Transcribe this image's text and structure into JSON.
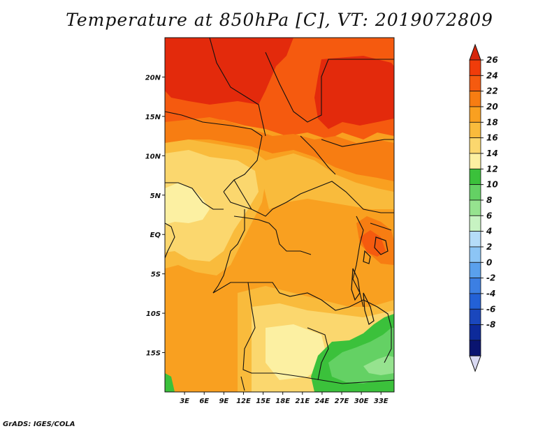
{
  "title": "Temperature at 850hPa [C], VT: 2019072809",
  "footer": "GrADS: IGES/COLA",
  "map": {
    "lat_labels": [
      "20N",
      "15N",
      "10N",
      "5N",
      "EQ",
      "5S",
      "10S",
      "15S"
    ],
    "lat_values": [
      20,
      15,
      10,
      5,
      0,
      -5,
      -10,
      -15
    ],
    "lon_labels": [
      "3E",
      "6E",
      "9E",
      "12E",
      "15E",
      "18E",
      "21E",
      "24E",
      "27E",
      "30E",
      "33E"
    ],
    "lon_values": [
      3,
      6,
      9,
      12,
      15,
      18,
      21,
      24,
      27,
      30,
      33
    ],
    "lon_range": [
      0,
      35
    ],
    "lat_range": [
      -20,
      25
    ]
  },
  "colorbar": {
    "labels": [
      "26",
      "24",
      "22",
      "20",
      "18",
      "16",
      "14",
      "12",
      "10",
      "8",
      "6",
      "4",
      "2",
      "0",
      "-2",
      "-4",
      "-6",
      "-8"
    ],
    "colors": [
      "#f03c0a",
      "#f55a0f",
      "#f77d12",
      "#f9a020",
      "#f9bb3c",
      "#fbd76e",
      "#fcf0a2",
      "#3bc13b",
      "#64d164",
      "#96e38f",
      "#c7f3c2",
      "#b5dcf8",
      "#8cc5f5",
      "#5aa0ec",
      "#3c7fe3",
      "#2361d6",
      "#1a47bd",
      "#0d2a9a",
      "#0a1470"
    ],
    "top_color": "#d7260c",
    "bottom_color": "#d9d9f2"
  }
}
